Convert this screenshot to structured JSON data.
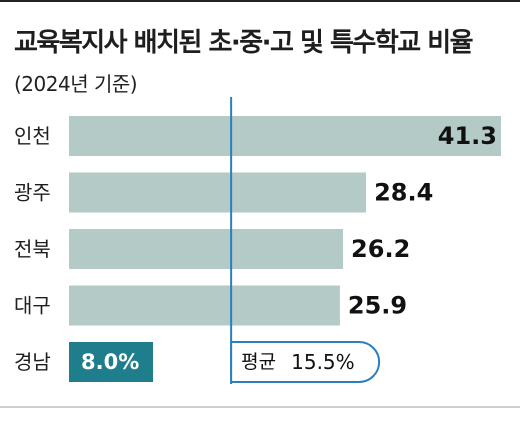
{
  "title": "교육복지사 배치된 초·중·고 및 특수학교 비율",
  "subtitle": "(2024년 기준)",
  "colors": {
    "bar": "#b3cac6",
    "highlight_bar": "#1f7e8c",
    "average_line": "#2b7fc0",
    "text": "#1e1e1e"
  },
  "chart_data": {
    "type": "bar",
    "orientation": "horizontal",
    "unit": "%",
    "categories": [
      "인천",
      "광주",
      "전북",
      "대구",
      "경남"
    ],
    "values": [
      41.3,
      28.4,
      26.2,
      25.9,
      8.0
    ],
    "value_labels": [
      "41.3",
      "28.4",
      "26.2",
      "25.9",
      "8.0%"
    ],
    "highlight_category": "경남",
    "average": {
      "label": "평균",
      "value": 15.5,
      "value_label": "15.5%"
    }
  }
}
